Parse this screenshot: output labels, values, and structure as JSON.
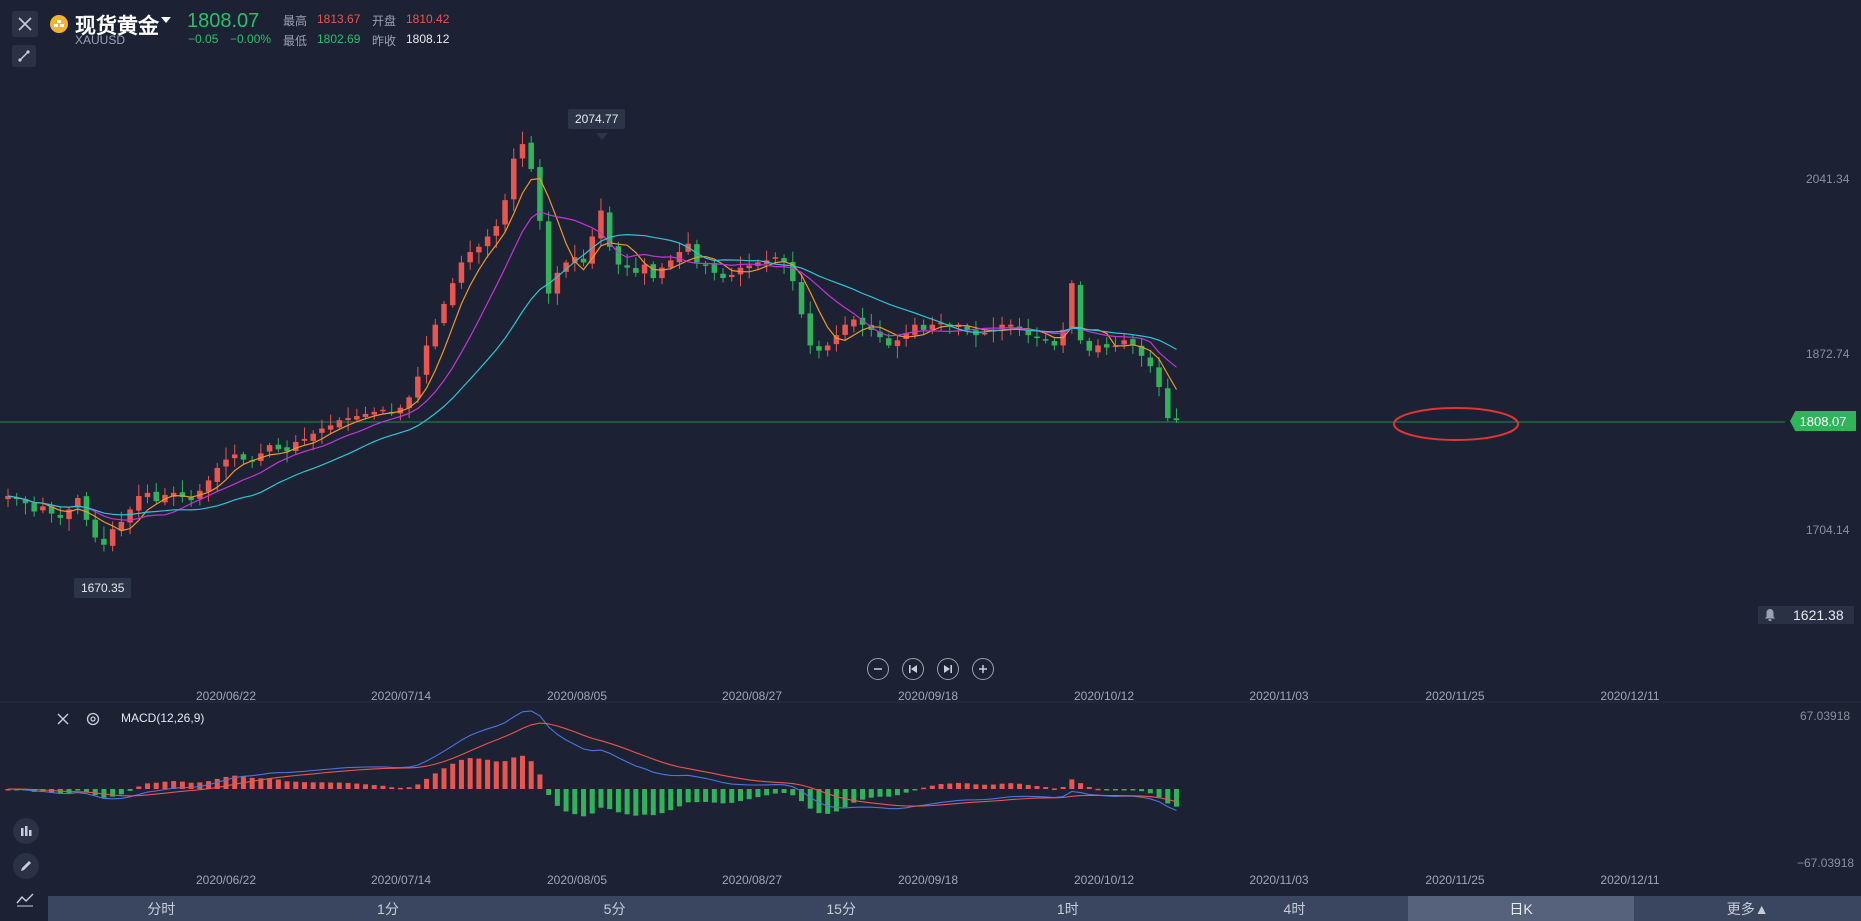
{
  "header": {
    "name": "现货黄金",
    "symbol": "XAUUSD",
    "price": "1808.07",
    "change": "−0.05",
    "change_pct": "−0.00%",
    "high_label": "最高",
    "high": "1813.67",
    "open_label": "开盘",
    "open": "1810.42",
    "low_label": "最低",
    "low": "1802.69",
    "prev_close_label": "昨收",
    "prev_close": "1808.12"
  },
  "annotations": {
    "peak": "2074.77",
    "trough": "1670.35",
    "current_tag": "1808.07",
    "alert_price": "1621.38"
  },
  "price_axis": [
    "2041.34",
    "1872.74",
    "1704.14"
  ],
  "macd_axis": [
    "67.03918",
    "−67.03918"
  ],
  "dates": [
    "2020/06/22",
    "2020/07/14",
    "2020/08/05",
    "2020/08/27",
    "2020/09/18",
    "2020/10/12",
    "2020/11/03",
    "2020/11/25",
    "2020/12/11"
  ],
  "indicator": {
    "name": "MACD(12,26,9)"
  },
  "periods": [
    {
      "label": "分时",
      "active": false
    },
    {
      "label": "1分",
      "active": false
    },
    {
      "label": "5分",
      "active": false
    },
    {
      "label": "15分",
      "active": false
    },
    {
      "label": "1时",
      "active": false
    },
    {
      "label": "4时",
      "active": false
    },
    {
      "label": "日K",
      "active": true
    },
    {
      "label": "更多▲",
      "active": false
    }
  ],
  "colors": {
    "up": "#e8564f",
    "down": "#2fb45a",
    "ma5": "#f0962a",
    "ma10": "#c434d8",
    "ma20": "#2ec4d4",
    "dif": "#4d74e0",
    "dea": "#e8564f",
    "highlight": "#e03535"
  },
  "chart_data": {
    "type": "candlestick",
    "symbol": "XAUUSD",
    "interval": "日K",
    "y_axis": {
      "ticks": [
        2041.34,
        1872.74,
        1704.14
      ]
    },
    "close_path": [
      1735,
      1732,
      1728,
      1720,
      1725,
      1718,
      1714,
      1722,
      1733,
      1712,
      1695,
      1688,
      1703,
      1710,
      1722,
      1735,
      1738,
      1730,
      1736,
      1738,
      1734,
      1731,
      1740,
      1750,
      1762,
      1770,
      1775,
      1770,
      1768,
      1776,
      1784,
      1780,
      1778,
      1787,
      1790,
      1795,
      1800,
      1803,
      1808,
      1810,
      1812,
      1814,
      1816,
      1818,
      1815,
      1820,
      1830,
      1850,
      1880,
      1900,
      1920,
      1940,
      1960,
      1970,
      1975,
      1985,
      1995,
      2020,
      2060,
      2074,
      2050,
      2000,
      1930,
      1950,
      1960,
      1965,
      1960,
      1985,
      2010,
      1975,
      1958,
      1955,
      1950,
      1958,
      1945,
      1955,
      1962,
      1970,
      1978,
      1960,
      1958,
      1950,
      1945,
      1948,
      1955,
      1957,
      1960,
      1962,
      1965,
      1960,
      1942,
      1910,
      1880,
      1875,
      1880,
      1890,
      1900,
      1905,
      1900,
      1895,
      1888,
      1880,
      1885,
      1892,
      1900,
      1895,
      1900,
      1902,
      1898,
      1900,
      1895,
      1890,
      1892,
      1895,
      1900,
      1900,
      1895,
      1890,
      1888,
      1885,
      1880,
      1895,
      1940,
      1885,
      1875,
      1880,
      1878,
      1880,
      1885,
      1880,
      1870,
      1860,
      1840,
      1810,
      1808
    ],
    "annotations": [
      {
        "label": "peak",
        "value": 2074.77,
        "date": "2020/08/05"
      },
      {
        "label": "trough",
        "value": 1670.35
      },
      {
        "label": "current",
        "value": 1808.07
      },
      {
        "label": "alert",
        "value": 1621.38
      }
    ],
    "moving_averages": [
      "MA5",
      "MA10",
      "MA20"
    ],
    "macd": {
      "name": "MACD(12,26,9)",
      "range": [
        -67.03918,
        67.03918
      ]
    },
    "x_ticks": [
      "2020/06/22",
      "2020/07/14",
      "2020/08/05",
      "2020/08/27",
      "2020/09/18",
      "2020/10/12",
      "2020/11/03",
      "2020/11/25",
      "2020/12/11"
    ]
  }
}
